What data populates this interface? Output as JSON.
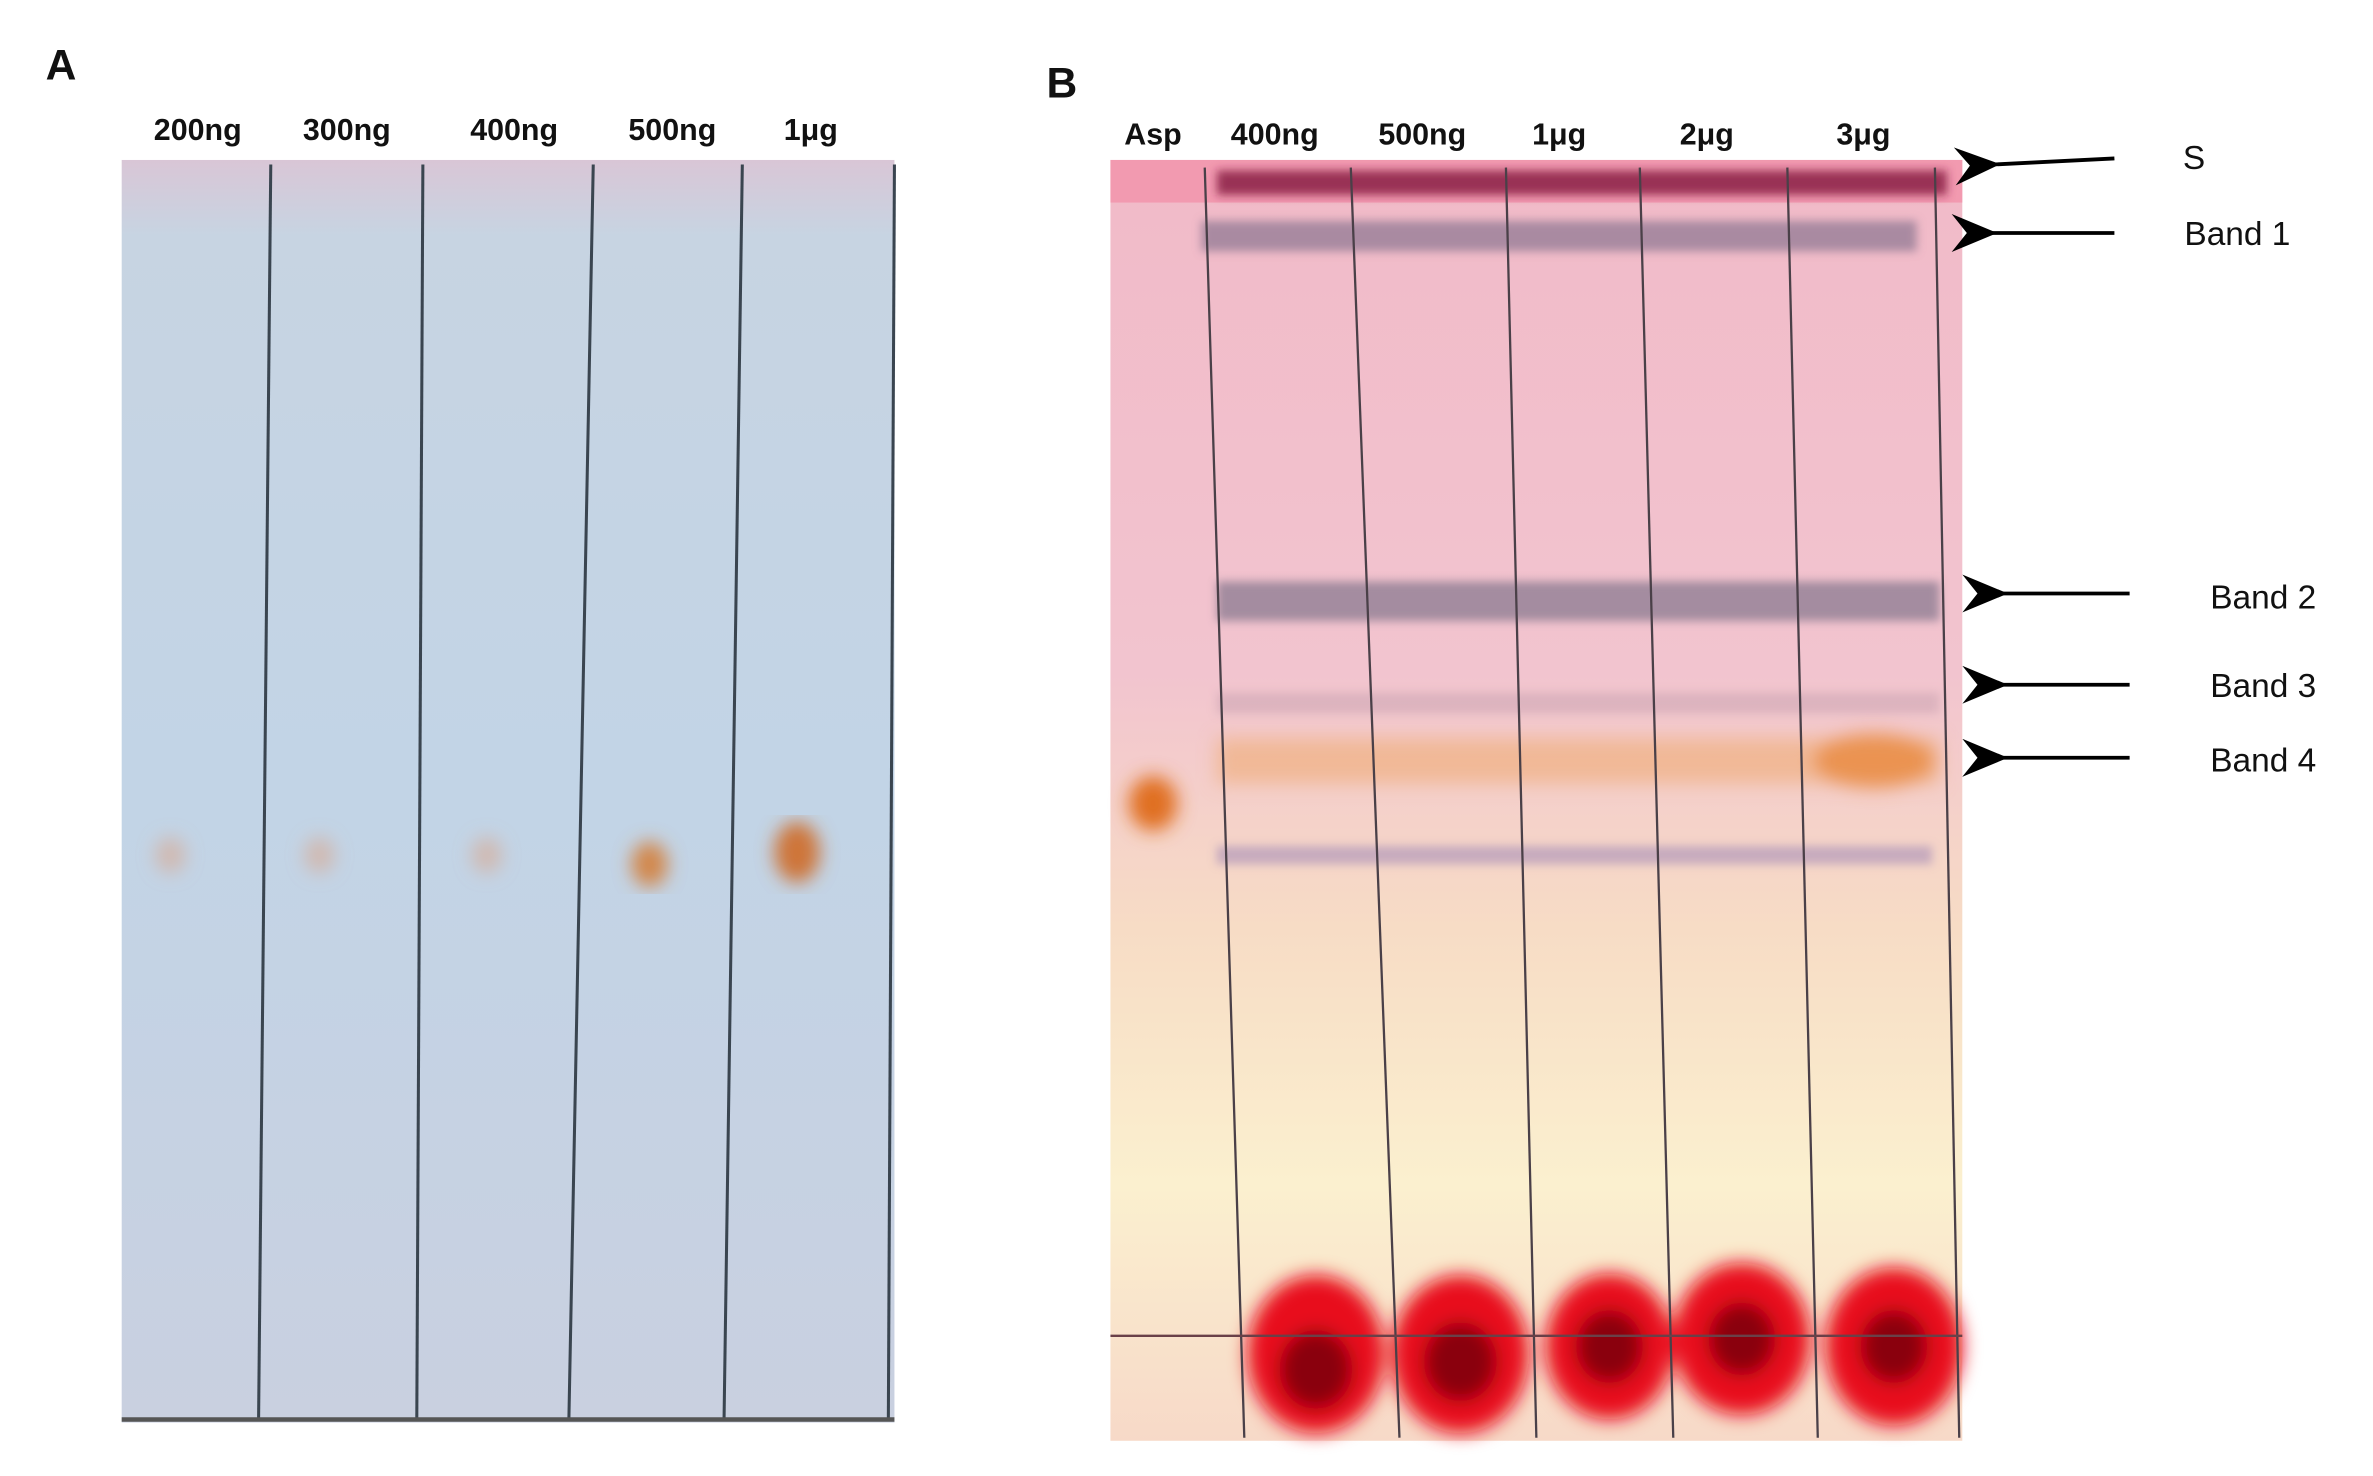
{
  "panels": [
    {
      "label": "A",
      "lanes": [
        "200ng",
        "300ng",
        "400ng",
        "500ng",
        "1μg"
      ]
    },
    {
      "label": "B",
      "lanes": [
        "Asp",
        "400ng",
        "500ng",
        "1μg",
        "2μg",
        "3μg"
      ],
      "annotations": [
        "S",
        "Band 1",
        "Band 2",
        "Band 3",
        "Band 4"
      ]
    }
  ]
}
